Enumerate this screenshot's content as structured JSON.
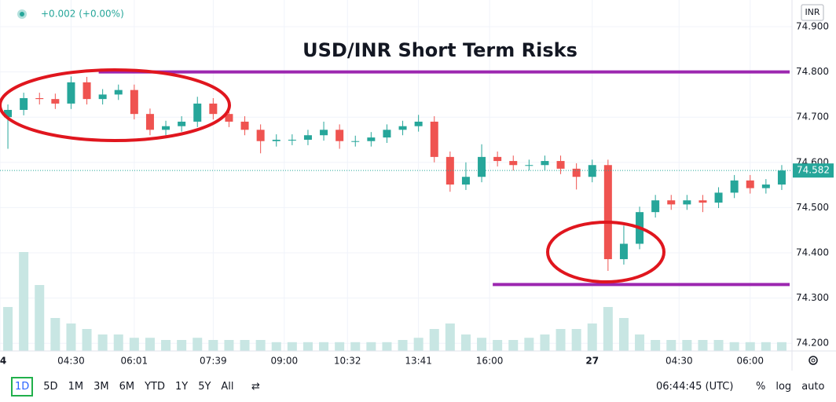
{
  "chart_data": {
    "type": "candlestick",
    "title": "USD/INR Short Term Risks",
    "x": [
      1,
      3,
      5,
      7,
      9,
      11,
      13,
      15,
      17,
      19,
      21,
      23,
      25,
      27,
      29,
      31,
      33,
      35,
      37,
      39,
      41,
      43,
      45,
      47,
      49,
      51,
      53,
      55,
      57,
      59,
      61,
      63,
      65,
      67,
      69,
      71,
      73,
      75,
      77,
      79,
      81,
      83,
      85,
      87,
      89,
      91,
      93,
      95,
      97,
      99
    ],
    "ohlc": [
      [
        74.7,
        74.728,
        74.63,
        74.716
      ],
      [
        74.716,
        74.754,
        74.704,
        74.742
      ],
      [
        74.742,
        74.754,
        74.728,
        74.74
      ],
      [
        74.74,
        74.752,
        74.718,
        74.73
      ],
      [
        74.73,
        74.79,
        74.718,
        74.777
      ],
      [
        74.777,
        74.789,
        74.728,
        74.74
      ],
      [
        74.74,
        74.762,
        74.728,
        74.75
      ],
      [
        74.75,
        74.772,
        74.738,
        74.76
      ],
      [
        74.76,
        74.772,
        74.695,
        74.707
      ],
      [
        74.707,
        74.719,
        74.66,
        74.672
      ],
      [
        74.672,
        74.692,
        74.66,
        74.68
      ],
      [
        74.68,
        74.702,
        74.668,
        74.69
      ],
      [
        74.69,
        74.745,
        74.678,
        74.73
      ],
      [
        74.73,
        74.742,
        74.695,
        74.707
      ],
      [
        74.707,
        74.719,
        74.678,
        74.69
      ],
      [
        74.69,
        74.702,
        74.66,
        74.672
      ],
      [
        74.672,
        74.684,
        74.62,
        74.647
      ],
      [
        74.647,
        74.662,
        74.635,
        74.65
      ],
      [
        74.65,
        74.662,
        74.638,
        74.65
      ],
      [
        74.65,
        74.672,
        74.638,
        74.66
      ],
      [
        74.66,
        74.69,
        74.648,
        74.672
      ],
      [
        74.672,
        74.684,
        74.63,
        74.647
      ],
      [
        74.647,
        74.659,
        74.635,
        74.647
      ],
      [
        74.647,
        74.667,
        74.635,
        74.655
      ],
      [
        74.655,
        74.684,
        74.643,
        74.672
      ],
      [
        74.672,
        74.692,
        74.66,
        74.68
      ],
      [
        74.68,
        74.705,
        74.668,
        74.69
      ],
      [
        74.69,
        74.702,
        74.6,
        74.612
      ],
      [
        74.612,
        74.624,
        74.535,
        74.551
      ],
      [
        74.551,
        74.6,
        74.539,
        74.568
      ],
      [
        74.568,
        74.64,
        74.556,
        74.612
      ],
      [
        74.612,
        74.624,
        74.591,
        74.603
      ],
      [
        74.603,
        74.615,
        74.582,
        74.594
      ],
      [
        74.594,
        74.606,
        74.582,
        74.594
      ],
      [
        74.594,
        74.615,
        74.582,
        74.603
      ],
      [
        74.603,
        74.615,
        74.574,
        74.586
      ],
      [
        74.586,
        74.598,
        74.54,
        74.568
      ],
      [
        74.568,
        74.606,
        74.556,
        74.594
      ],
      [
        74.594,
        74.606,
        74.36,
        74.386
      ],
      [
        74.386,
        74.46,
        74.374,
        74.42
      ],
      [
        74.42,
        74.502,
        74.408,
        74.49
      ],
      [
        74.49,
        74.528,
        74.478,
        74.516
      ],
      [
        74.516,
        74.528,
        74.495,
        74.507
      ],
      [
        74.507,
        74.528,
        74.495,
        74.516
      ],
      [
        74.516,
        74.528,
        74.49,
        74.511
      ],
      [
        74.511,
        74.545,
        74.499,
        74.533
      ],
      [
        74.533,
        74.572,
        74.521,
        74.56
      ],
      [
        74.56,
        74.572,
        74.531,
        74.543
      ],
      [
        74.543,
        74.563,
        74.531,
        74.551
      ],
      [
        74.551,
        74.594,
        74.539,
        74.582
      ]
    ],
    "volume": [
      40,
      90,
      60,
      30,
      25,
      20,
      15,
      15,
      12,
      12,
      10,
      10,
      12,
      10,
      10,
      10,
      10,
      8,
      8,
      8,
      8,
      8,
      8,
      8,
      8,
      10,
      12,
      20,
      25,
      15,
      12,
      10,
      10,
      12,
      15,
      20,
      20,
      25,
      40,
      30,
      15,
      10,
      10,
      10,
      10,
      10,
      8,
      8,
      8,
      8
    ],
    "vlim": [
      0,
      100
    ],
    "up_color": "#26a69a",
    "down_color": "#ef5350",
    "volume_color": "#c8e6e3",
    "xlim": [
      0,
      100
    ],
    "xticks": [
      {
        "value": 0,
        "label": "4"
      },
      {
        "value": 9,
        "label": "04:30"
      },
      {
        "value": 17,
        "label": "06:01"
      },
      {
        "value": 27,
        "label": "07:39"
      },
      {
        "value": 36,
        "label": "09:00"
      },
      {
        "value": 44,
        "label": "10:32"
      },
      {
        "value": 53,
        "label": "13:41"
      },
      {
        "value": 62,
        "label": "16:00"
      },
      {
        "value": 75,
        "label": "27"
      },
      {
        "value": 86,
        "label": "04:30"
      },
      {
        "value": 95,
        "label": "06:00"
      }
    ],
    "ylim": [
      74.183,
      74.959
    ],
    "yticks": [
      {
        "value": 74.2,
        "label": "74.200"
      },
      {
        "value": 74.3,
        "label": "74.300"
      },
      {
        "value": 74.4,
        "label": "74.400"
      },
      {
        "value": 74.5,
        "label": "74.500"
      },
      {
        "value": 74.6,
        "label": "74.600"
      },
      {
        "value": 74.7,
        "label": "74.700"
      },
      {
        "value": 74.8,
        "label": "74.800"
      },
      {
        "value": 74.9,
        "label": "74.900"
      }
    ],
    "grid": true,
    "last_price": 74.582,
    "last_price_color": "#26a69a",
    "hlines": [
      {
        "value": 74.8,
        "x0": 12.5,
        "color": "#9c27b0"
      },
      {
        "value": 74.33,
        "x0": 62.4,
        "color": "#9c27b0"
      }
    ]
  },
  "header": {
    "change": "+0.002 (+0.00%)",
    "currency": "INR"
  },
  "toolbar": {
    "ranges": [
      "1D",
      "5D",
      "1M",
      "3M",
      "6M",
      "YTD",
      "1Y",
      "5Y",
      "All"
    ],
    "time": "06:44:45 (UTC)",
    "options": [
      "%",
      "log",
      "auto"
    ]
  }
}
